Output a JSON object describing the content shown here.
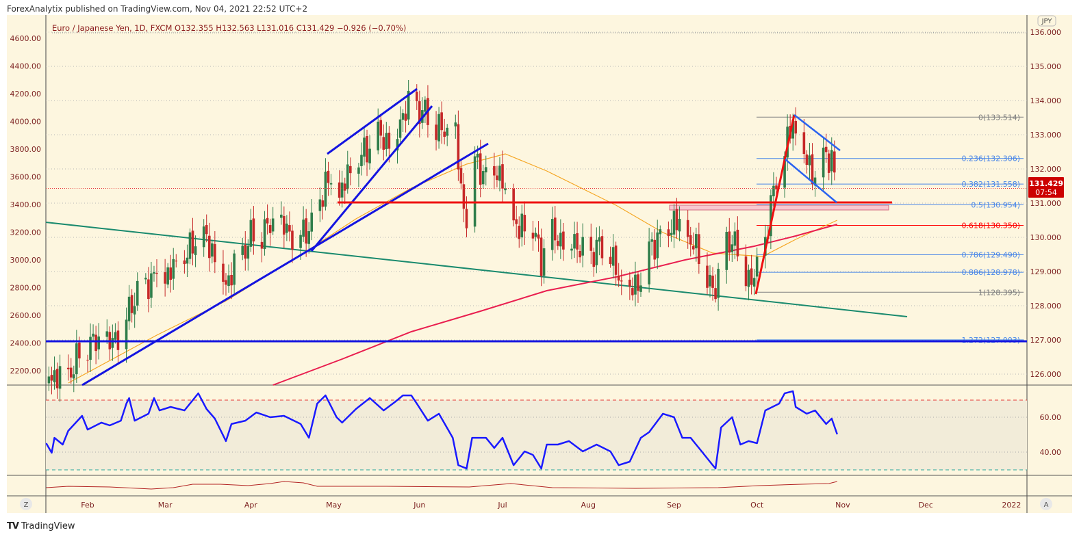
{
  "header": {
    "published": "ForexAnalytix published on TradingView.com, Nov 04, 2021 22:52 UTC+2"
  },
  "footer": {
    "brand": "TradingView",
    "logo_mark": "TV"
  },
  "controls": {
    "left_button": "Z",
    "right_button": "A",
    "currency_badge": "JPY"
  },
  "chart_data": {
    "type": "candlestick",
    "title": "Euro / Japanese Yen, 1D, FXCM  O132.355  H132.563  L131.016  C131.429  −0.926 (−0.70%)",
    "symbol": "Euro / Japanese Yen",
    "interval": "1D",
    "ohlc_last": {
      "open": 132.355,
      "high": 132.563,
      "low": 131.016,
      "close": 131.429,
      "change": -0.926,
      "change_pct": -0.7
    },
    "last_price_label": "131.429",
    "countdown": "07:54",
    "colors": {
      "up": "#2f7d4a",
      "down": "#c62828",
      "sma_fast": "#f5a623",
      "sma_slow": "#e91e4f",
      "rsi": "#1a1aff",
      "last_price_bg": "#cc0000"
    },
    "right_axis": {
      "range": [
        125.7,
        136.5
      ],
      "ticks": [
        "136.000",
        "135.000",
        "134.000",
        "133.000",
        "132.000",
        "131.000",
        "130.000",
        "129.000",
        "128.000",
        "127.000",
        "126.000"
      ]
    },
    "left_axis": {
      "ticks": [
        "4600.00",
        "4400.00",
        "4200.00",
        "4000.00",
        "3800.00",
        "3600.00",
        "3400.00",
        "3200.00",
        "3000.00",
        "2800.00",
        "2600.00",
        "2400.00",
        "2200.00"
      ]
    },
    "time_axis": [
      {
        "label": "Feb",
        "day": 32
      },
      {
        "label": "Mar",
        "day": 60
      },
      {
        "label": "Apr",
        "day": 91
      },
      {
        "label": "May",
        "day": 121
      },
      {
        "label": "Jun",
        "day": 152
      },
      {
        "label": "Jul",
        "day": 182
      },
      {
        "label": "Aug",
        "day": 213
      },
      {
        "label": "Sep",
        "day": 244
      },
      {
        "label": "Oct",
        "day": 274
      },
      {
        "label": "Nov",
        "day": 305
      },
      {
        "label": "Dec",
        "day": 335
      },
      {
        "label": "2022",
        "day": 366
      }
    ],
    "close_path": [
      [
        18,
        126.0
      ],
      [
        25,
        126.0
      ],
      [
        32,
        126.9
      ],
      [
        40,
        126.8
      ],
      [
        46,
        127.7
      ],
      [
        49,
        128.3
      ],
      [
        57,
        129.0
      ],
      [
        61,
        128.9
      ],
      [
        67,
        129.3
      ],
      [
        72,
        130.1
      ],
      [
        77,
        129.7
      ],
      [
        82,
        128.7
      ],
      [
        86,
        129.3
      ],
      [
        91,
        130.0
      ],
      [
        99,
        130.3
      ],
      [
        109,
        130.1
      ],
      [
        114,
        130.5
      ],
      [
        118,
        131.7
      ],
      [
        123,
        131.3
      ],
      [
        129,
        132.1
      ],
      [
        136,
        132.9
      ],
      [
        143,
        132.9
      ],
      [
        146,
        133.7
      ],
      [
        150,
        133.9
      ],
      [
        155,
        133.5
      ],
      [
        161,
        133.0
      ],
      [
        165,
        133.0
      ],
      [
        167,
        131.3
      ],
      [
        169,
        130.7
      ],
      [
        172,
        132.3
      ],
      [
        177,
        131.7
      ],
      [
        180,
        132.1
      ],
      [
        185,
        130.7
      ],
      [
        188,
        130.1
      ],
      [
        192,
        130.5
      ],
      [
        196,
        129.3
      ],
      [
        198,
        130.0
      ],
      [
        203,
        130.0
      ],
      [
        208,
        130.0
      ],
      [
        212,
        129.3
      ],
      [
        216,
        129.7
      ],
      [
        221,
        129.5
      ],
      [
        224,
        128.7
      ],
      [
        228,
        128.3
      ],
      [
        232,
        128.9
      ],
      [
        235,
        129.7
      ],
      [
        240,
        130.2
      ],
      [
        244,
        130.5
      ],
      [
        248,
        130.0
      ],
      [
        253,
        129.5
      ],
      [
        258,
        128.3
      ],
      [
        261,
        129.3
      ],
      [
        266,
        130.1
      ],
      [
        270,
        128.9
      ],
      [
        274,
        128.9
      ],
      [
        277,
        130.0
      ],
      [
        280,
        131.3
      ],
      [
        284,
        132.5
      ],
      [
        287,
        133.3
      ],
      [
        291,
        132.3
      ],
      [
        295,
        131.9
      ],
      [
        299,
        132.5
      ],
      [
        301,
        132.3
      ],
      [
        303,
        131.429
      ]
    ],
    "sma_fast": [
      [
        25,
        125.74
      ],
      [
        57,
        127.14
      ],
      [
        82,
        128.14
      ],
      [
        112,
        129.64
      ],
      [
        129,
        130.54
      ],
      [
        149,
        131.44
      ],
      [
        169,
        132.14
      ],
      [
        183,
        132.44
      ],
      [
        198,
        131.94
      ],
      [
        223,
        130.94
      ],
      [
        240,
        130.14
      ],
      [
        258,
        129.54
      ],
      [
        276,
        129.44
      ],
      [
        288,
        129.94
      ],
      [
        303,
        130.5
      ]
    ],
    "sma_slow": [
      [
        99,
        125.68
      ],
      [
        124,
        126.44
      ],
      [
        149,
        127.24
      ],
      [
        174,
        127.84
      ],
      [
        198,
        128.44
      ],
      [
        223,
        128.84
      ],
      [
        248,
        129.34
      ],
      [
        273,
        129.74
      ],
      [
        288,
        130.04
      ],
      [
        303,
        130.38
      ]
    ],
    "fibonacci": [
      {
        "label": "0(133.514)",
        "price": 133.514,
        "color": "#808080"
      },
      {
        "label": "0.236(132.306)",
        "price": 132.306,
        "color": "#4a86e8"
      },
      {
        "label": "0.382(131.558)",
        "price": 131.558,
        "color": "#4a86e8"
      },
      {
        "label": "0.5(130.954)",
        "price": 130.954,
        "color": "#4a86e8"
      },
      {
        "label": "0.618(130.350)",
        "price": 130.35,
        "color": "#ff0000"
      },
      {
        "label": "0.786(129.490)",
        "price": 129.49,
        "color": "#4a86e8"
      },
      {
        "label": "0.886(128.978)",
        "price": 128.978,
        "color": "#4a86e8"
      },
      {
        "label": "1(128.395)",
        "price": 128.395,
        "color": "#808080"
      },
      {
        "label": "1.272(127.003)",
        "price": 127.003,
        "color": "#4a86e8"
      }
    ],
    "rsi": {
      "ticks": [
        "60.00",
        "40.00"
      ],
      "overbought": 70,
      "oversold": 30,
      "values": [
        [
          17,
          45.1
        ],
        [
          19,
          39.6
        ],
        [
          20,
          48.2
        ],
        [
          23,
          44.3
        ],
        [
          25,
          52.2
        ],
        [
          30,
          60.8
        ],
        [
          32,
          52.9
        ],
        [
          37,
          56.9
        ],
        [
          40,
          55.3
        ],
        [
          44,
          58.0
        ],
        [
          46,
          67.8
        ],
        [
          47,
          71.0
        ],
        [
          49,
          58.0
        ],
        [
          54,
          62.0
        ],
        [
          56,
          71.0
        ],
        [
          58,
          63.9
        ],
        [
          62,
          65.9
        ],
        [
          67,
          63.9
        ],
        [
          72,
          73.7
        ],
        [
          75,
          64.7
        ],
        [
          78,
          59.2
        ],
        [
          82,
          46.3
        ],
        [
          84,
          56.1
        ],
        [
          89,
          58.0
        ],
        [
          93,
          62.7
        ],
        [
          98,
          60.0
        ],
        [
          103,
          60.8
        ],
        [
          109,
          56.1
        ],
        [
          112,
          48.2
        ],
        [
          115,
          67.8
        ],
        [
          118,
          72.5
        ],
        [
          122,
          60.0
        ],
        [
          124,
          56.9
        ],
        [
          129,
          64.7
        ],
        [
          134,
          71.0
        ],
        [
          139,
          63.9
        ],
        [
          143,
          68.6
        ],
        [
          146,
          72.5
        ],
        [
          149,
          72.5
        ],
        [
          151,
          67.8
        ],
        [
          155,
          58.0
        ],
        [
          159,
          62.0
        ],
        [
          164,
          48.2
        ],
        [
          166,
          32.5
        ],
        [
          169,
          30.6
        ],
        [
          171,
          48.2
        ],
        [
          176,
          48.2
        ],
        [
          179,
          42.4
        ],
        [
          182,
          48.2
        ],
        [
          186,
          32.5
        ],
        [
          190,
          40.4
        ],
        [
          193,
          38.4
        ],
        [
          196,
          30.6
        ],
        [
          198,
          44.3
        ],
        [
          202,
          44.3
        ],
        [
          206,
          46.3
        ],
        [
          211,
          40.4
        ],
        [
          216,
          44.3
        ],
        [
          221,
          40.4
        ],
        [
          224,
          32.5
        ],
        [
          228,
          34.5
        ],
        [
          232,
          48.2
        ],
        [
          235,
          51.4
        ],
        [
          240,
          62.0
        ],
        [
          244,
          60.0
        ],
        [
          247,
          48.2
        ],
        [
          250,
          48.2
        ],
        [
          254,
          40.4
        ],
        [
          258,
          32.5
        ],
        [
          259,
          30.6
        ],
        [
          261,
          54.1
        ],
        [
          265,
          60.0
        ],
        [
          268,
          44.3
        ],
        [
          271,
          46.3
        ],
        [
          274,
          45.1
        ],
        [
          277,
          63.9
        ],
        [
          282,
          67.8
        ],
        [
          284,
          73.7
        ],
        [
          287,
          74.9
        ],
        [
          288,
          65.9
        ],
        [
          292,
          62.0
        ],
        [
          295,
          63.9
        ],
        [
          299,
          56.1
        ],
        [
          301,
          59.2
        ],
        [
          303,
          50.2
        ]
      ]
    },
    "lower_indicator": [
      [
        17,
        0.45
      ],
      [
        25,
        0.55
      ],
      [
        40,
        0.5
      ],
      [
        55,
        0.35
      ],
      [
        63,
        0.45
      ],
      [
        70,
        0.7
      ],
      [
        80,
        0.7
      ],
      [
        90,
        0.6
      ],
      [
        98,
        0.75
      ],
      [
        103,
        0.9
      ],
      [
        110,
        0.8
      ],
      [
        115,
        0.55
      ],
      [
        140,
        0.55
      ],
      [
        170,
        0.5
      ],
      [
        185,
        0.75
      ],
      [
        200,
        0.45
      ],
      [
        230,
        0.4
      ],
      [
        260,
        0.45
      ],
      [
        275,
        0.6
      ],
      [
        290,
        0.7
      ],
      [
        300,
        0.75
      ],
      [
        303,
        0.9
      ]
    ]
  }
}
